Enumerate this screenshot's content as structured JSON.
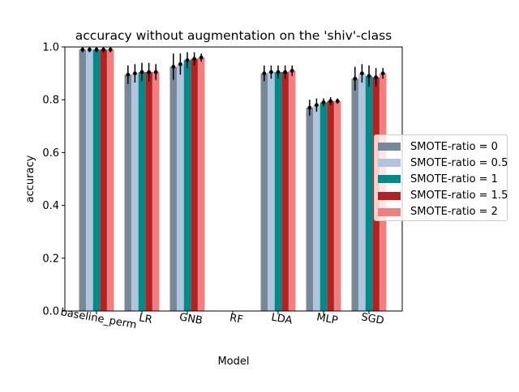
{
  "chart_data": {
    "type": "bar",
    "title": "accuracy without augmentation on the 'shiv'-class",
    "xlabel": "Model",
    "ylabel": "accuracy",
    "ylim": [
      0,
      1.0
    ],
    "yticks": [
      "0.0",
      "0.2",
      "0.4",
      "0.6",
      "0.8",
      "1.0"
    ],
    "categories": [
      "baseline_perm",
      "LR",
      "GNB",
      "RF",
      "LDA",
      "MLP",
      "SGD"
    ],
    "legend_position": "right",
    "grid": false,
    "series": [
      {
        "name": "SMOTE-ratio = 0",
        "color": "#778899",
        "values": [
          0.99,
          0.895,
          0.925,
          null,
          0.9,
          0.77,
          0.88
        ],
        "errors": [
          0.01,
          0.035,
          0.05,
          null,
          0.03,
          0.03,
          0.045
        ]
      },
      {
        "name": "SMOTE-ratio = 0.5",
        "color": "#b0c4de",
        "values": [
          0.99,
          0.9,
          0.935,
          null,
          0.905,
          0.78,
          0.9
        ],
        "errors": [
          0.01,
          0.035,
          0.04,
          null,
          0.025,
          0.025,
          0.035
        ]
      },
      {
        "name": "SMOTE-ratio = 1",
        "color": "#008b8b",
        "values": [
          0.99,
          0.905,
          0.95,
          null,
          0.905,
          0.79,
          0.89
        ],
        "errors": [
          0.01,
          0.035,
          0.03,
          null,
          0.025,
          0.015,
          0.04
        ]
      },
      {
        "name": "SMOTE-ratio = 1.5",
        "color": "#b22222",
        "values": [
          0.99,
          0.905,
          0.955,
          null,
          0.905,
          0.795,
          0.885
        ],
        "errors": [
          0.01,
          0.035,
          0.025,
          null,
          0.025,
          0.015,
          0.035
        ]
      },
      {
        "name": "SMOTE-ratio = 2",
        "color": "#f08080",
        "values": [
          0.99,
          0.905,
          0.96,
          null,
          0.91,
          0.795,
          0.9
        ],
        "errors": [
          0.01,
          0.03,
          0.015,
          null,
          0.02,
          0.01,
          0.02
        ]
      }
    ]
  }
}
